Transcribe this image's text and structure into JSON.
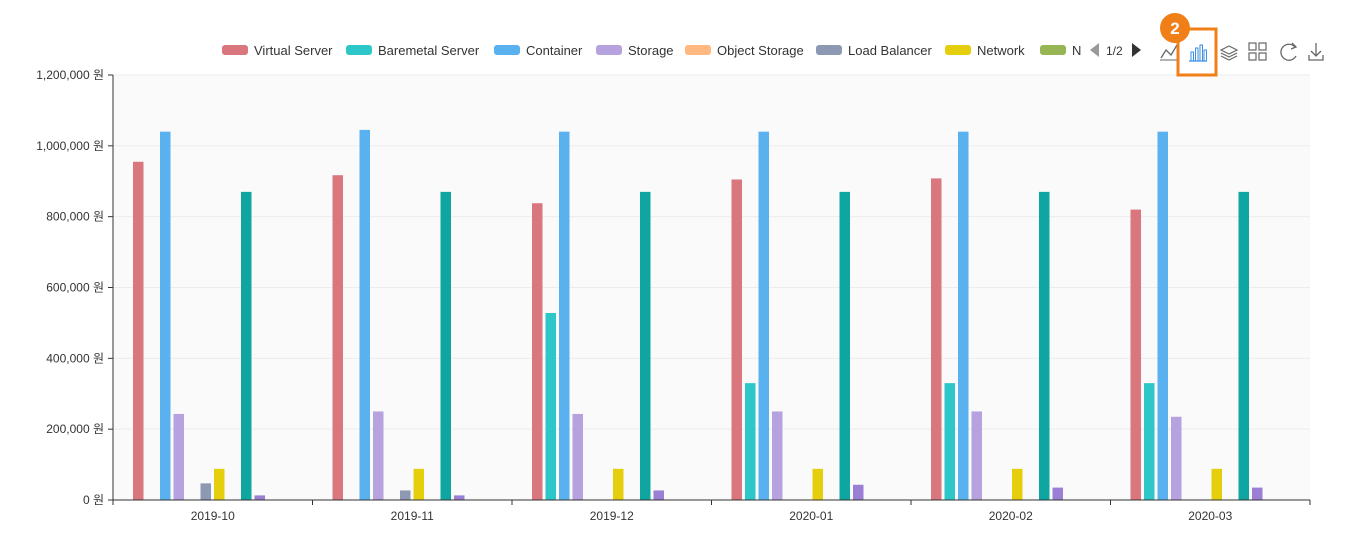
{
  "chart_data": {
    "type": "bar",
    "categories": [
      "2019-10",
      "2019-11",
      "2019-12",
      "2020-01",
      "2020-02",
      "2020-03"
    ],
    "series": [
      {
        "name": "Virtual Server",
        "color": "#d9767e",
        "values": [
          955000,
          917000,
          838000,
          905000,
          908000,
          820000
        ]
      },
      {
        "name": "Baremetal Server",
        "color": "#2ec7c9",
        "values": [
          0,
          0,
          528000,
          330000,
          330000,
          330000
        ]
      },
      {
        "name": "Container",
        "color": "#5ab1ef",
        "values": [
          1040000,
          1045000,
          1040000,
          1040000,
          1040000,
          1040000
        ]
      },
      {
        "name": "Storage",
        "color": "#b6a2de",
        "values": [
          243000,
          250000,
          243000,
          250000,
          250000,
          235000
        ]
      },
      {
        "name": "Object Storage",
        "color": "#ffb980",
        "values": [
          0,
          0,
          0,
          0,
          0,
          0
        ]
      },
      {
        "name": "Load Balancer",
        "color": "#8d98b3",
        "values": [
          47000,
          27000,
          0,
          0,
          0,
          0
        ]
      },
      {
        "name": "Network",
        "color": "#e5cf0d",
        "values": [
          88000,
          88000,
          88000,
          88000,
          88000,
          88000
        ]
      },
      {
        "name": "N",
        "color": "#97b552",
        "values": [
          0,
          0,
          0,
          0,
          0,
          0
        ]
      },
      {
        "name": "",
        "color": "#0fa5a0",
        "values": [
          870000,
          870000,
          870000,
          870000,
          870000,
          870000
        ]
      },
      {
        "name": "",
        "color": "#9b7fd4",
        "values": [
          13000,
          13000,
          27000,
          43000,
          35000,
          35000
        ]
      }
    ],
    "ylim": [
      0,
      1200000
    ],
    "yticks": [
      "0 원",
      "200,000 원",
      "400,000 원",
      "600,000 원",
      "800,000 원",
      "1,000,000 원",
      "1,200,000 원"
    ],
    "grid": true,
    "legend_position": "top"
  },
  "legend": {
    "page_label": "1/2"
  },
  "toolbox": {
    "tools": [
      "line-chart-icon",
      "bar-chart-icon",
      "stack-icon",
      "tiled-icon",
      "refresh-icon",
      "download-icon"
    ],
    "highlight_badge": "2",
    "highlight_color": "#f07f17",
    "icon_color": "#666666",
    "active_color": "#3a8ee6"
  }
}
